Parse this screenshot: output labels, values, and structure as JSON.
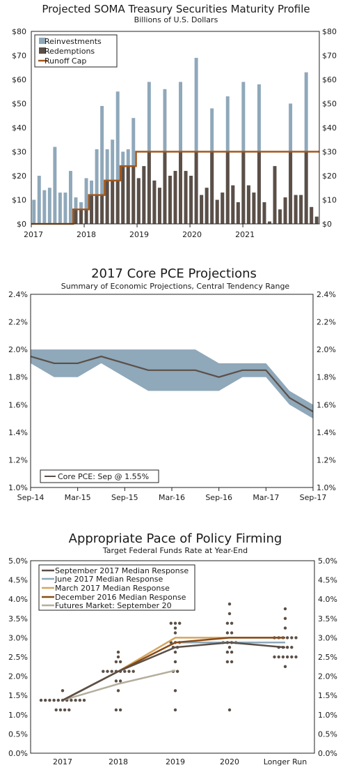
{
  "chart_data": [
    {
      "type": "bar",
      "title": "Projected SOMA Treasury Securities Maturity Profile",
      "subtitle": "Billions of U.S. Dollars",
      "ylim": [
        0,
        80
      ],
      "yticks": [
        "$0",
        "$10",
        "$20",
        "$30",
        "$40",
        "$50",
        "$60",
        "$70",
        "$80"
      ],
      "xlabels": [
        "2017",
        "2018",
        "2019",
        "2020",
        "2021"
      ],
      "legend_placement": "top-left",
      "colors": {
        "reinvestments": "#8fa8ba",
        "redemptions": "#5b4f47",
        "cap": "#a0581e"
      },
      "series": [
        {
          "name": "Reinvestments",
          "values": [
            10,
            20,
            14,
            15,
            32,
            13,
            13,
            22,
            11,
            9,
            19,
            18,
            31,
            49,
            31,
            35,
            55,
            30,
            31,
            44,
            19,
            24,
            59,
            18,
            15,
            56,
            20,
            22,
            59,
            22,
            20,
            69,
            12,
            15,
            48,
            10,
            13,
            53,
            16,
            9,
            59,
            16,
            13,
            58,
            9,
            1,
            24,
            6,
            11,
            50,
            12,
            12,
            63,
            7,
            3
          ]
        },
        {
          "name": "Redemptions",
          "values": [
            0,
            0,
            0,
            0,
            0,
            0,
            0,
            0,
            6,
            6,
            6,
            12,
            12,
            12,
            18,
            18,
            18,
            24,
            24,
            24,
            19,
            24,
            30,
            18,
            15,
            30,
            20,
            22,
            30,
            22,
            20,
            30,
            12,
            15,
            30,
            10,
            13,
            30,
            16,
            9,
            30,
            16,
            13,
            30,
            9,
            1,
            24,
            6,
            11,
            30,
            12,
            12,
            30,
            7,
            3
          ]
        },
        {
          "name": "Runoff Cap",
          "values": [
            0,
            0,
            0,
            0,
            0,
            0,
            0,
            0,
            6,
            6,
            6,
            12,
            12,
            12,
            18,
            18,
            18,
            24,
            24,
            24,
            30,
            30,
            30,
            30,
            30,
            30,
            30,
            30,
            30,
            30,
            30,
            30,
            30,
            30,
            30,
            30,
            30,
            30,
            30,
            30,
            30,
            30,
            30,
            30,
            30,
            30,
            30,
            30,
            30,
            30,
            30,
            30,
            30,
            30,
            30
          ]
        }
      ]
    },
    {
      "type": "area",
      "title": "2017 Core PCE Projections",
      "subtitle": "Summary of Economic Projections, Central Tendency Range",
      "ylim": [
        1.0,
        2.4
      ],
      "yticks": [
        "1.0%",
        "1.2%",
        "1.4%",
        "1.6%",
        "1.8%",
        "2.0%",
        "2.2%",
        "2.4%"
      ],
      "x": [
        "Sep-14",
        "Dec-14",
        "Mar-15",
        "Jun-15",
        "Sep-15",
        "Dec-15",
        "Mar-16",
        "Jun-16",
        "Sep-16",
        "Dec-16",
        "Mar-17",
        "Jun-17",
        "Sep-17"
      ],
      "xlabels": [
        "Sep-14",
        "Mar-15",
        "Sep-15",
        "Mar-16",
        "Sep-16",
        "Mar-17",
        "Sep-17"
      ],
      "band_upper": [
        2.0,
        2.0,
        2.0,
        2.0,
        2.0,
        2.0,
        2.0,
        2.0,
        1.9,
        1.9,
        1.9,
        1.7,
        1.6
      ],
      "band_lower": [
        1.9,
        1.8,
        1.8,
        1.9,
        1.8,
        1.7,
        1.7,
        1.7,
        1.7,
        1.8,
        1.8,
        1.6,
        1.5
      ],
      "core_pce": [
        1.95,
        1.9,
        1.9,
        1.95,
        1.9,
        1.85,
        1.85,
        1.85,
        1.8,
        1.85,
        1.85,
        1.65,
        1.55
      ],
      "legend": "Core PCE: Sep @ 1.55%",
      "legend_placement": "bottom-left",
      "colors": {
        "band": "#8fa8ba",
        "line": "#5b4f47"
      }
    },
    {
      "type": "scatter",
      "title": "Appropriate Pace of Policy Firming",
      "subtitle": "Target Federal Funds Rate at Year-End",
      "ylim": [
        0,
        5
      ],
      "yticks": [
        "0.0%",
        "0.5%",
        "1.0%",
        "1.5%",
        "2.0%",
        "2.5%",
        "3.0%",
        "3.5%",
        "4.0%",
        "4.5%",
        "5.0%"
      ],
      "categories": [
        "2017",
        "2018",
        "2019",
        "2020",
        "Longer Run"
      ],
      "legend_placement": "top-left",
      "dots": [
        {
          "category": "2017",
          "counts": [
            [
              1.625,
              1
            ],
            [
              1.375,
              11
            ],
            [
              1.125,
              4
            ]
          ]
        },
        {
          "category": "2018",
          "counts": [
            [
              2.625,
              1
            ],
            [
              2.5,
              1
            ],
            [
              2.375,
              2
            ],
            [
              2.125,
              8
            ],
            [
              1.875,
              2
            ],
            [
              1.625,
              1
            ],
            [
              1.125,
              2
            ]
          ]
        },
        {
          "category": "2019",
          "counts": [
            [
              3.375,
              3
            ],
            [
              3.25,
              1
            ],
            [
              3.125,
              1
            ],
            [
              2.875,
              3
            ],
            [
              2.75,
              2
            ],
            [
              2.625,
              1
            ],
            [
              2.375,
              1
            ],
            [
              2.125,
              2
            ],
            [
              1.625,
              1
            ],
            [
              1.125,
              1
            ]
          ]
        },
        {
          "category": "2020",
          "counts": [
            [
              3.875,
              1
            ],
            [
              3.625,
              1
            ],
            [
              3.375,
              2
            ],
            [
              3.125,
              2
            ],
            [
              2.875,
              4
            ],
            [
              2.75,
              1
            ],
            [
              2.625,
              2
            ],
            [
              2.375,
              2
            ],
            [
              1.125,
              1
            ]
          ]
        },
        {
          "category": "Longer Run",
          "counts": [
            [
              3.75,
              1
            ],
            [
              3.5,
              1
            ],
            [
              3.25,
              1
            ],
            [
              3.0,
              6
            ],
            [
              2.75,
              4
            ],
            [
              2.5,
              6
            ],
            [
              2.25,
              1
            ]
          ]
        }
      ],
      "series": [
        {
          "name": "September 2017 Median Response",
          "values": [
            1.375,
            2.125,
            2.75,
            2.875,
            2.75
          ]
        },
        {
          "name": "June 2017 Median Response",
          "values": [
            1.375,
            2.125,
            2.875,
            2.875,
            2.875
          ]
        },
        {
          "name": "March 2017 Median Response",
          "values": [
            1.375,
            2.125,
            3.0,
            3.0,
            3.0
          ]
        },
        {
          "name": "December 2016 Median Response",
          "values": [
            1.375,
            2.125,
            2.875,
            3.0,
            3.0
          ]
        },
        {
          "name": "Futures Market: September 20",
          "values": [
            1.375,
            1.8,
            2.15,
            null,
            null
          ]
        }
      ],
      "colors": {
        "dots": "#5b4f47",
        "sep17": "#5b4f47",
        "jun17": "#8fa8ba",
        "mar17": "#d6a560",
        "dec16": "#8a4a14",
        "futures": "#b3ae9c"
      }
    }
  ]
}
